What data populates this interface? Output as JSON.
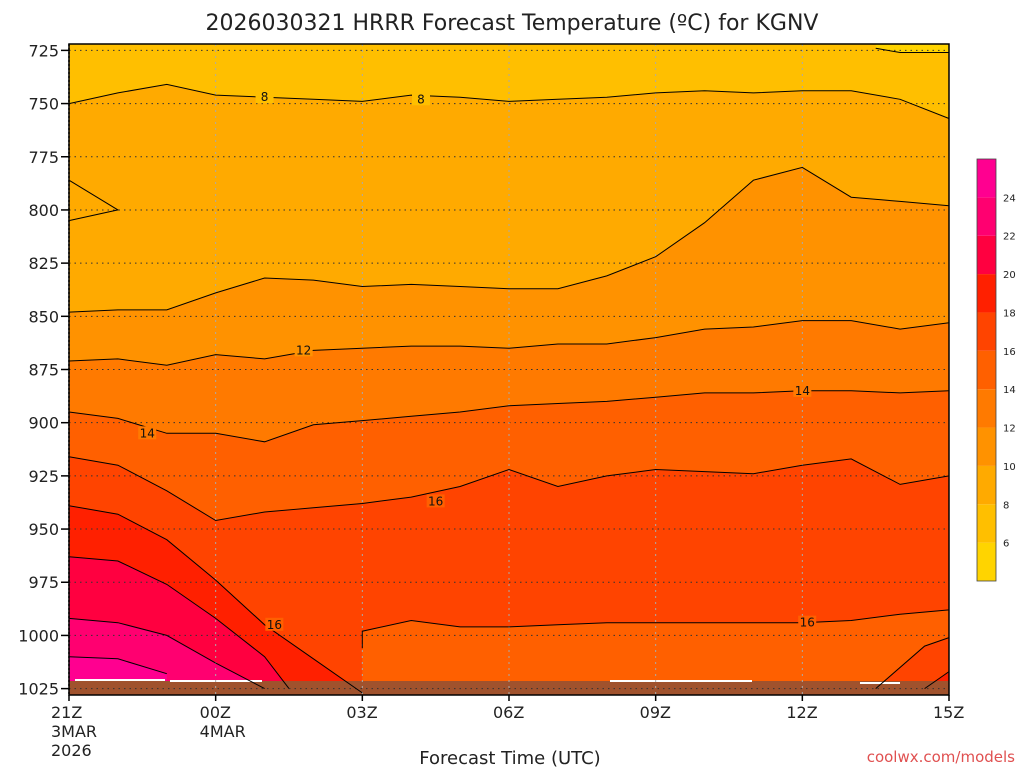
{
  "chart_data": {
    "type": "heatmap",
    "title": "2026030321 HRRR Forecast Temperature (ºC) for KGNV",
    "xlabel": "Forecast Time (UTC)",
    "credit": "coolwx.com/models",
    "x_ticks": [
      {
        "label": "21Z",
        "sub1": "3MAR",
        "sub2": "2026"
      },
      {
        "label": "00Z",
        "sub1": "4MAR",
        "sub2": ""
      },
      {
        "label": "03Z",
        "sub1": "",
        "sub2": ""
      },
      {
        "label": "06Z",
        "sub1": "",
        "sub2": ""
      },
      {
        "label": "09Z",
        "sub1": "",
        "sub2": ""
      },
      {
        "label": "12Z",
        "sub1": "",
        "sub2": ""
      },
      {
        "label": "15Z",
        "sub1": "",
        "sub2": ""
      }
    ],
    "x_hours": [
      0,
      3,
      6,
      9,
      12,
      15,
      18
    ],
    "y_ticks": [
      "725",
      "750",
      "775",
      "800",
      "825",
      "850",
      "875",
      "900",
      "925",
      "950",
      "975",
      "1000",
      "1025"
    ],
    "y_values": [
      725,
      750,
      775,
      800,
      825,
      850,
      875,
      900,
      925,
      950,
      975,
      1000,
      1025
    ],
    "ylim": [
      722,
      1028
    ],
    "xlim": [
      0,
      18
    ],
    "grid": true,
    "legend_position": "right",
    "colorbar": {
      "ticks": [
        "6",
        "8",
        "10",
        "12",
        "14",
        "16",
        "18",
        "20",
        "22",
        "24"
      ],
      "tick_values": [
        6,
        8,
        10,
        12,
        14,
        16,
        18,
        20,
        22,
        24
      ],
      "bands": [
        {
          "from": 4,
          "to": 6,
          "color": "#ffd400"
        },
        {
          "from": 6,
          "to": 8,
          "color": "#ffbf00"
        },
        {
          "from": 8,
          "to": 10,
          "color": "#ffaa00"
        },
        {
          "from": 10,
          "to": 12,
          "color": "#ff9200"
        },
        {
          "from": 12,
          "to": 14,
          "color": "#ff7a00"
        },
        {
          "from": 14,
          "to": 16,
          "color": "#ff6000"
        },
        {
          "from": 16,
          "to": 18,
          "color": "#ff4400"
        },
        {
          "from": 18,
          "to": 20,
          "color": "#ff2000"
        },
        {
          "from": 20,
          "to": 22,
          "color": "#ff0040"
        },
        {
          "from": 22,
          "to": 24,
          "color": "#ff0070"
        },
        {
          "from": 24,
          "to": 26,
          "color": "#ff0090"
        }
      ]
    },
    "contours": [
      {
        "value": 6,
        "label": "",
        "points": [
          [
            0,
            805
          ],
          [
            1,
            800
          ],
          [
            0,
            786
          ]
        ]
      },
      {
        "value": 8,
        "label": "8",
        "points": [
          [
            0,
            750
          ],
          [
            1,
            745
          ],
          [
            2,
            741
          ],
          [
            3,
            746
          ],
          [
            4,
            747
          ],
          [
            5,
            748
          ],
          [
            6,
            749
          ],
          [
            7,
            746
          ],
          [
            8,
            747
          ],
          [
            9,
            749
          ],
          [
            10,
            748
          ],
          [
            11,
            747
          ],
          [
            12,
            745
          ],
          [
            13,
            744
          ],
          [
            14,
            745
          ],
          [
            15,
            744
          ],
          [
            16,
            744
          ],
          [
            17,
            748
          ],
          [
            18,
            757
          ]
        ]
      },
      {
        "value": 8,
        "label": "",
        "points": [
          [
            16.5,
            724
          ],
          [
            17,
            726
          ],
          [
            18,
            726
          ]
        ]
      },
      {
        "value": 10,
        "label": "",
        "points": [
          [
            0,
            848
          ],
          [
            1,
            847
          ],
          [
            2,
            847
          ],
          [
            3,
            839
          ],
          [
            4,
            832
          ],
          [
            5,
            833
          ],
          [
            6,
            836
          ],
          [
            7,
            835
          ],
          [
            8,
            836
          ],
          [
            9,
            837
          ],
          [
            10,
            837
          ],
          [
            11,
            831
          ],
          [
            12,
            822
          ],
          [
            13,
            806
          ],
          [
            14,
            786
          ],
          [
            15,
            780
          ],
          [
            16,
            794
          ],
          [
            17,
            796
          ],
          [
            18,
            798
          ]
        ]
      },
      {
        "value": 12,
        "label": "12",
        "points": [
          [
            0,
            871
          ],
          [
            1,
            870
          ],
          [
            2,
            873
          ],
          [
            3,
            868
          ],
          [
            4,
            870
          ],
          [
            5,
            866
          ],
          [
            6,
            865
          ],
          [
            7,
            864
          ],
          [
            8,
            864
          ],
          [
            9,
            865
          ],
          [
            10,
            863
          ],
          [
            11,
            863
          ],
          [
            12,
            860
          ],
          [
            13,
            856
          ],
          [
            14,
            855
          ],
          [
            15,
            852
          ],
          [
            16,
            852
          ],
          [
            17,
            856
          ],
          [
            18,
            853
          ]
        ]
      },
      {
        "value": 14,
        "label": "14",
        "points": [
          [
            0,
            895
          ],
          [
            1,
            898
          ],
          [
            2,
            905
          ],
          [
            3,
            905
          ],
          [
            4,
            909
          ],
          [
            5,
            901
          ],
          [
            6,
            899
          ],
          [
            7,
            897
          ],
          [
            8,
            895
          ],
          [
            9,
            892
          ],
          [
            10,
            891
          ],
          [
            11,
            890
          ],
          [
            12,
            888
          ],
          [
            13,
            886
          ],
          [
            14,
            886
          ],
          [
            15,
            885
          ],
          [
            16,
            885
          ],
          [
            17,
            886
          ],
          [
            18,
            885
          ]
        ]
      },
      {
        "value": 16,
        "label": "16",
        "points": [
          [
            0,
            916
          ],
          [
            1,
            920
          ],
          [
            2,
            932
          ],
          [
            3,
            946
          ],
          [
            4,
            942
          ],
          [
            5,
            940
          ],
          [
            6,
            938
          ],
          [
            7,
            935
          ],
          [
            8,
            930
          ],
          [
            9,
            922
          ],
          [
            10,
            930
          ],
          [
            11,
            925
          ],
          [
            12,
            922
          ],
          [
            13,
            923
          ],
          [
            14,
            924
          ],
          [
            15,
            920
          ],
          [
            16,
            917
          ],
          [
            17,
            929
          ],
          [
            18,
            925
          ]
        ]
      },
      {
        "value": 16,
        "label": "16",
        "points": [
          [
            6,
            1006
          ],
          [
            6,
            998
          ],
          [
            7,
            993
          ],
          [
            8,
            996
          ],
          [
            9,
            996
          ],
          [
            10,
            995
          ],
          [
            11,
            994
          ],
          [
            12,
            994
          ],
          [
            13,
            994
          ],
          [
            14,
            994
          ],
          [
            15,
            994
          ],
          [
            16,
            993
          ],
          [
            17,
            990
          ],
          [
            18,
            988
          ]
        ]
      },
      {
        "value": 18,
        "label": "",
        "points": [
          [
            0,
            939
          ],
          [
            1,
            943
          ],
          [
            2,
            955
          ],
          [
            3,
            974
          ],
          [
            4,
            995
          ],
          [
            5,
            1011
          ],
          [
            6,
            1027
          ]
        ]
      },
      {
        "value": 20,
        "label": "",
        "points": [
          [
            0,
            963
          ],
          [
            1,
            965
          ],
          [
            2,
            976
          ],
          [
            3,
            992
          ],
          [
            4,
            1010
          ],
          [
            4.5,
            1025
          ]
        ]
      },
      {
        "value": 22,
        "label": "",
        "points": [
          [
            0,
            992
          ],
          [
            1,
            994
          ],
          [
            2,
            1000
          ],
          [
            3,
            1013
          ],
          [
            4,
            1025
          ]
        ]
      },
      {
        "value": 24,
        "label": "",
        "points": [
          [
            0,
            1010
          ],
          [
            1,
            1011
          ],
          [
            2,
            1018
          ]
        ]
      },
      {
        "value": 18,
        "label": "",
        "points": [
          [
            16.5,
            1025
          ],
          [
            17.5,
            1005
          ],
          [
            18,
            1001
          ]
        ]
      },
      {
        "value": 20,
        "label": "",
        "points": [
          [
            17.5,
            1025
          ],
          [
            18,
            1017
          ]
        ]
      }
    ]
  }
}
